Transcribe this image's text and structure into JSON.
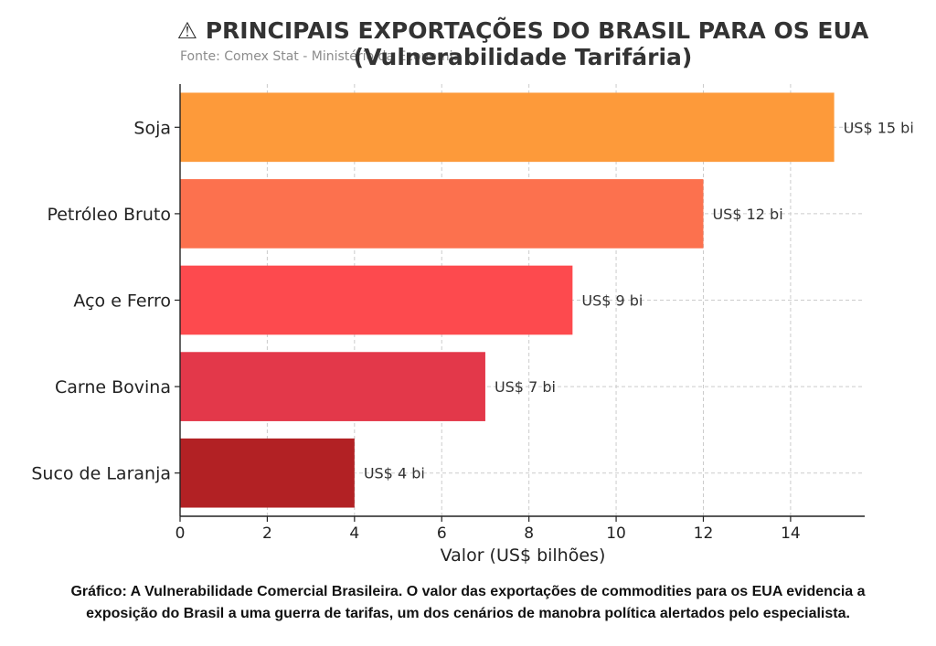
{
  "chart_data": {
    "type": "bar",
    "orientation": "horizontal",
    "title_line1": "⚠ PRINCIPAIS EXPORTAÇÕES DO BRASIL PARA OS EUA",
    "title_line2": "(Vulnerabilidade Tarifária)",
    "source": "Fonte: Comex Stat - Ministério da Economia",
    "categories": [
      "Soja",
      "Petróleo Bruto",
      "Aço e Ferro",
      "Carne Bovina",
      "Suco de Laranja"
    ],
    "values": [
      15,
      12,
      9,
      7,
      4
    ],
    "value_labels": [
      "US$ 15 bi",
      "US$ 12 bi",
      "US$ 9 bi",
      "US$ 7 bi",
      "US$ 4 bi"
    ],
    "colors": [
      "#fd9a3a",
      "#fc714e",
      "#fd4a4e",
      "#e3384a",
      "#b22124"
    ],
    "xlabel": "Valor (US$ bilhões)",
    "ylabel": "",
    "xlim": [
      0,
      15.7
    ],
    "xticks": [
      0,
      2,
      4,
      6,
      8,
      10,
      12,
      14
    ],
    "grid": true
  },
  "caption": {
    "line1": "Gráfico: A Vulnerabilidade Comercial Brasileira. O valor das exportações de commodities para os EUA evidencia a",
    "line2": "exposição do Brasil a uma guerra de tarifas, um dos cenários de manobra política alertados pelo especialista."
  }
}
